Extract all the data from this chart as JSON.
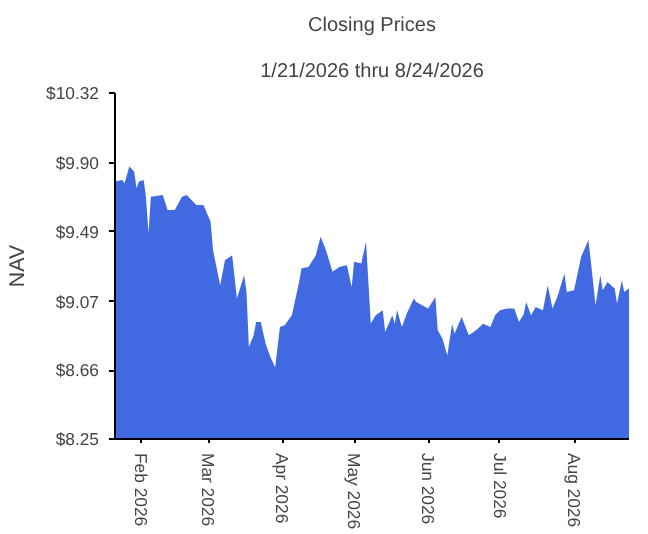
{
  "chart_data": {
    "type": "area",
    "title": "Closing Prices",
    "subtitle": "1/21/2026 thru 8/24/2026",
    "ylabel": "NAV",
    "color": "#4169e1",
    "grid": false,
    "xlim": [
      "2026-01-21",
      "2026-08-24"
    ],
    "xticks": [
      {
        "value": "2026-02-01",
        "label": "Feb 2026"
      },
      {
        "value": "2026-03-01",
        "label": "Mar 2026"
      },
      {
        "value": "2026-04-01",
        "label": "Apr 2026"
      },
      {
        "value": "2026-05-01",
        "label": "May 2026"
      },
      {
        "value": "2026-06-01",
        "label": "Jun 2026"
      },
      {
        "value": "2026-07-01",
        "label": "Jul 2026"
      },
      {
        "value": "2026-08-01",
        "label": "Aug 2026"
      }
    ],
    "ylim": [
      8.25,
      10.32
    ],
    "yticks": [
      {
        "value": 8.25,
        "label": "$8.25"
      },
      {
        "value": 8.66,
        "label": "$8.66"
      },
      {
        "value": 9.07,
        "label": "$9.07"
      },
      {
        "value": 9.49,
        "label": "$9.49"
      },
      {
        "value": 9.9,
        "label": "$9.90"
      },
      {
        "value": 10.32,
        "label": "$10.32"
      }
    ],
    "x": [
      "2026-01-21",
      "2026-01-24",
      "2026-01-25",
      "2026-01-27",
      "2026-01-29",
      "2026-01-30",
      "2026-01-31",
      "2026-02-02",
      "2026-02-03",
      "2026-02-04",
      "2026-02-05",
      "2026-02-10",
      "2026-02-12",
      "2026-02-15",
      "2026-02-18",
      "2026-02-20",
      "2026-02-24",
      "2026-02-27",
      "2026-03-02",
      "2026-03-03",
      "2026-03-06",
      "2026-03-08",
      "2026-03-11",
      "2026-03-13",
      "2026-03-16",
      "2026-03-17",
      "2026-03-18",
      "2026-03-20",
      "2026-03-21",
      "2026-03-23",
      "2026-03-25",
      "2026-03-27",
      "2026-03-29",
      "2026-03-31",
      "2026-04-02",
      "2026-04-05",
      "2026-04-08",
      "2026-04-09",
      "2026-04-12",
      "2026-04-15",
      "2026-04-17",
      "2026-04-19",
      "2026-04-22",
      "2026-04-25",
      "2026-04-28",
      "2026-04-30",
      "2026-05-01",
      "2026-05-04",
      "2026-05-06",
      "2026-05-08",
      "2026-05-10",
      "2026-05-13",
      "2026-05-14",
      "2026-05-17",
      "2026-05-18",
      "2026-05-19",
      "2026-05-21",
      "2026-05-23",
      "2026-05-26",
      "2026-05-27",
      "2026-06-01",
      "2026-06-04",
      "2026-06-05",
      "2026-06-07",
      "2026-06-09",
      "2026-06-11",
      "2026-06-12",
      "2026-06-15",
      "2026-06-18",
      "2026-06-21",
      "2026-06-24",
      "2026-06-27",
      "2026-06-29",
      "2026-07-01",
      "2026-07-04",
      "2026-07-07",
      "2026-07-09",
      "2026-07-11",
      "2026-07-12",
      "2026-07-14",
      "2026-07-16",
      "2026-07-19",
      "2026-07-21",
      "2026-07-23",
      "2026-07-25",
      "2026-07-28",
      "2026-07-29",
      "2026-08-01",
      "2026-08-04",
      "2026-08-07",
      "2026-08-08",
      "2026-08-10",
      "2026-08-12",
      "2026-08-13",
      "2026-08-15",
      "2026-08-18",
      "2026-08-19",
      "2026-08-21",
      "2026-08-22",
      "2026-08-24"
    ],
    "values": [
      9.79,
      9.8,
      9.78,
      9.88,
      9.85,
      9.75,
      9.79,
      9.8,
      9.69,
      9.48,
      9.7,
      9.71,
      9.62,
      9.62,
      9.7,
      9.71,
      9.65,
      9.65,
      9.55,
      9.38,
      9.17,
      9.32,
      9.35,
      9.09,
      9.23,
      9.13,
      8.8,
      8.87,
      8.95,
      8.95,
      8.82,
      8.74,
      8.68,
      8.92,
      8.93,
      8.99,
      9.19,
      9.27,
      9.28,
      9.35,
      9.46,
      9.39,
      9.25,
      9.28,
      9.29,
      9.16,
      9.31,
      9.3,
      9.43,
      8.94,
      8.99,
      9.02,
      8.89,
      8.99,
      8.94,
      9.02,
      8.92,
      9.0,
      9.09,
      9.07,
      9.03,
      9.1,
      8.9,
      8.85,
      8.75,
      8.94,
      8.88,
      8.98,
      8.87,
      8.9,
      8.94,
      8.92,
      8.99,
      9.02,
      9.03,
      9.03,
      8.95,
      9.0,
      9.07,
      8.99,
      9.04,
      9.02,
      9.17,
      9.03,
      9.1,
      9.24,
      9.13,
      9.14,
      9.34,
      9.44,
      9.32,
      9.05,
      9.23,
      9.14,
      9.19,
      9.15,
      9.06,
      9.2,
      9.13,
      9.15
    ]
  }
}
